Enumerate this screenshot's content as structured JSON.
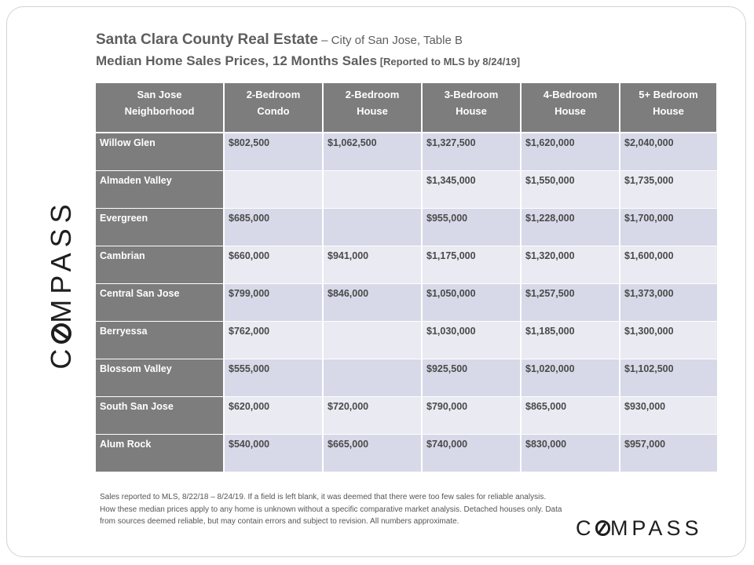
{
  "title": {
    "line1_main": "Santa Clara County Real Estate",
    "line1_sub": " – City of San Jose, Table B",
    "line2_main": "Median Home Sales Prices, 12 Months Sales",
    "line2_note": " [Reported to MLS by 8/24/19]"
  },
  "logo": {
    "left": "C",
    "right": "MPASS",
    "icon": "compass-o-icon"
  },
  "table": {
    "headers": [
      [
        "San Jose",
        "Neighborhood"
      ],
      [
        "2-Bedroom",
        "Condo"
      ],
      [
        "2-Bedroom",
        "House"
      ],
      [
        "3-Bedroom",
        "House"
      ],
      [
        "4-Bedroom",
        "House"
      ],
      [
        "5+ Bedroom",
        "House"
      ]
    ],
    "rows": [
      {
        "name": "Willow Glen",
        "values": [
          "$802,500",
          "$1,062,500",
          "$1,327,500",
          "$1,620,000",
          "$2,040,000"
        ]
      },
      {
        "name": "Almaden Valley",
        "values": [
          "",
          "",
          "$1,345,000",
          "$1,550,000",
          "$1,735,000"
        ]
      },
      {
        "name": "Evergreen",
        "values": [
          "$685,000",
          "",
          "$955,000",
          "$1,228,000",
          "$1,700,000"
        ]
      },
      {
        "name": "Cambrian",
        "values": [
          "$660,000",
          "$941,000",
          "$1,175,000",
          "$1,320,000",
          "$1,600,000"
        ]
      },
      {
        "name": "Central San Jose",
        "values": [
          "$799,000",
          "$846,000",
          "$1,050,000",
          "$1,257,500",
          "$1,373,000"
        ]
      },
      {
        "name": "Berryessa",
        "values": [
          "$762,000",
          "",
          "$1,030,000",
          "$1,185,000",
          "$1,300,000"
        ]
      },
      {
        "name": "Blossom Valley",
        "values": [
          "$555,000",
          "",
          "$925,500",
          "$1,020,000",
          "$1,102,500"
        ]
      },
      {
        "name": "South San Jose",
        "values": [
          "$620,000",
          "$720,000",
          "$790,000",
          "$865,000",
          "$930,000"
        ]
      },
      {
        "name": "Alum Rock",
        "values": [
          "$540,000",
          "$665,000",
          "$740,000",
          "$830,000",
          "$957,000"
        ]
      }
    ]
  },
  "footnote": "Sales reported to MLS, 8/22/18 – 8/24/19. If a field is left blank, it was deemed that there were too few sales for reliable analysis. How these median prices apply to any home is unknown without a specific comparative market analysis. Detached houses only. Data from sources deemed reliable, but may contain errors and subject to revision. All numbers approximate.",
  "colors": {
    "header_bg": "#7d7d7d",
    "row_odd": "#d7d9e8",
    "row_even": "#e9eaf2",
    "title_text": "#5e5e5e",
    "logo": "#1e1e1e"
  }
}
